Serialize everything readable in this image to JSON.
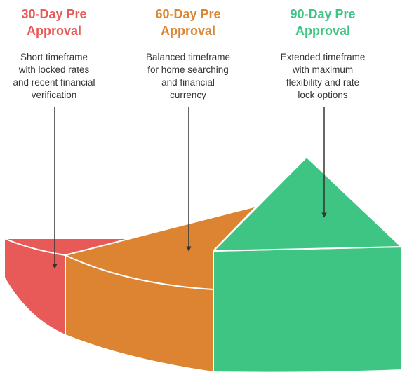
{
  "colors": {
    "red": "#E85A57",
    "orange": "#DD8433",
    "green": "#3EC584",
    "outline": "#ffffff",
    "arrow": "#333333",
    "text": "#333333"
  },
  "items": [
    {
      "title": "30-Day Pre\nApproval",
      "description": "Short timeframe\nwith locked rates\nand recent financial\nverification"
    },
    {
      "title": "60-Day Pre\nApproval",
      "description": "Balanced timeframe\nfor home searching\nand financial\ncurrency"
    },
    {
      "title": "90-Day Pre\nApproval",
      "description": "Extended timeframe\nwith maximum\nflexibility and rate\nlock options"
    }
  ]
}
